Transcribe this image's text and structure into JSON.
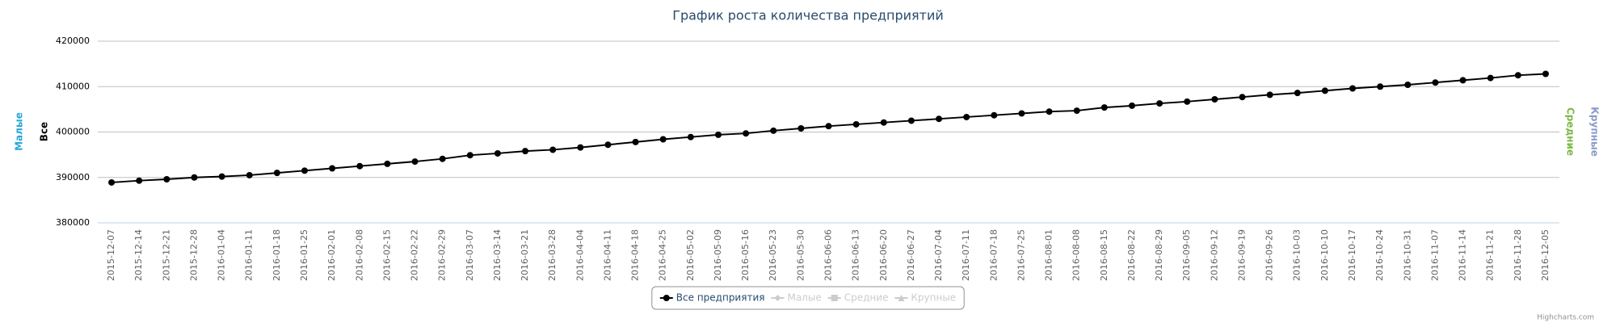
{
  "chart_data": {
    "type": "line",
    "title": "График роста количества предприятий",
    "categories": [
      "2015-12-07",
      "2015-12-14",
      "2015-12-21",
      "2015-12-28",
      "2016-01-04",
      "2016-01-11",
      "2016-01-18",
      "2016-01-25",
      "2016-02-01",
      "2016-02-08",
      "2016-02-15",
      "2016-02-22",
      "2016-02-29",
      "2016-03-07",
      "2016-03-14",
      "2016-03-21",
      "2016-03-28",
      "2016-04-04",
      "2016-04-11",
      "2016-04-18",
      "2016-04-25",
      "2016-05-02",
      "2016-05-09",
      "2016-05-16",
      "2016-05-23",
      "2016-05-30",
      "2016-06-06",
      "2016-06-13",
      "2016-06-20",
      "2016-06-27",
      "2016-07-04",
      "2016-07-11",
      "2016-07-18",
      "2016-07-25",
      "2016-08-01",
      "2016-08-08",
      "2016-08-15",
      "2016-08-22",
      "2016-08-29",
      "2016-09-05",
      "2016-09-12",
      "2016-09-19",
      "2016-09-26",
      "2016-10-03",
      "2016-10-10",
      "2016-10-17",
      "2016-10-24",
      "2016-10-31",
      "2016-11-07",
      "2016-11-14",
      "2016-11-21",
      "2016-11-28",
      "2016-12-05"
    ],
    "series": [
      {
        "name": "Все предприятия",
        "color": "#000000",
        "symbol": "circle",
        "visible": true,
        "values": [
          388900,
          389300,
          389600,
          390000,
          390200,
          390500,
          391000,
          391500,
          392000,
          392500,
          393000,
          393500,
          394100,
          394900,
          395300,
          395800,
          396100,
          396600,
          397200,
          397800,
          398400,
          398900,
          399400,
          399700,
          400300,
          400800,
          401300,
          401700,
          402100,
          402500,
          402900,
          403300,
          403700,
          404100,
          404500,
          404700,
          405400,
          405800,
          406300,
          406700,
          407200,
          407700,
          408200,
          408600,
          409100,
          409600,
          410000,
          410400,
          410900,
          411400,
          411900,
          412500,
          412800
        ]
      },
      {
        "name": "Малые",
        "color": "#2aa7d8",
        "symbol": "diamond",
        "visible": false
      },
      {
        "name": "Средние",
        "color": "#7cb846",
        "symbol": "square",
        "visible": false
      },
      {
        "name": "Крупные",
        "color": "#8a9bc6",
        "symbol": "triangle",
        "visible": false
      }
    ],
    "y_axis_titles": [
      {
        "text": "Малые",
        "color": "#2aa7d8",
        "side": "left"
      },
      {
        "text": "Все",
        "color": "#000000",
        "side": "left"
      },
      {
        "text": "Средние",
        "color": "#7cb846",
        "side": "right"
      },
      {
        "text": "Крупные",
        "color": "#8a9bc6",
        "side": "right"
      }
    ],
    "ylim": [
      380000,
      420000
    ],
    "yticks": [
      380000,
      390000,
      400000,
      410000,
      420000
    ],
    "grid": true,
    "legend": "bottom",
    "credits": "Highcharts.com"
  }
}
